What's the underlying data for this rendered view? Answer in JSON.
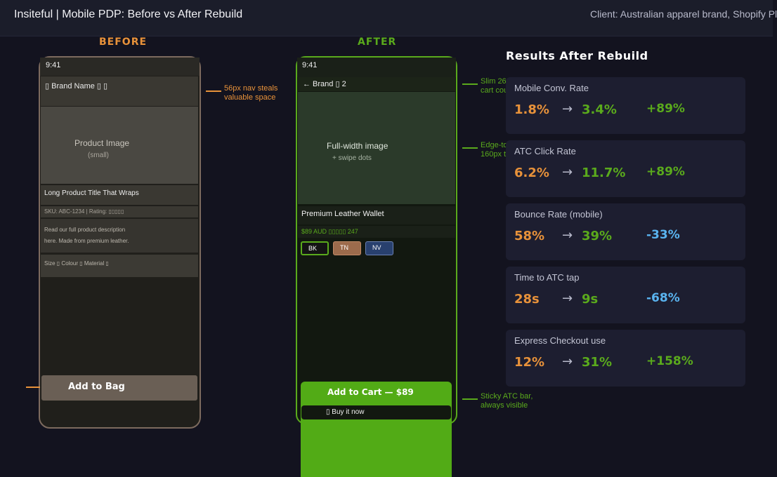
{
  "header": {
    "title": "Insiteful | Mobile PDP: Before vs After Rebuild",
    "client": "Client: Australian apparel brand, Shopify Pl"
  },
  "labels": {
    "before": "BEFORE",
    "after": "AFTER"
  },
  "before_phone": {
    "status_time": "9:41",
    "nav_text": "▯ Brand Name ▯ ▯",
    "image_text": "Product Image",
    "image_sub": "(small)",
    "title": "Long Product Title That Wraps",
    "sku": "SKU: ABC-1234  |  Rating: ▯▯▯▯▯",
    "description_line1": "Read our full product description",
    "description_line2": "here. Made from premium leather.",
    "variants": "Size ▯   Colour ▯   Material ▯",
    "atc": "Add to Bag"
  },
  "after_phone": {
    "status_time": "9:41",
    "nav_text": "← Brand  ▯ 2",
    "image_text": "Full-width image",
    "image_sub": "+ swipe dots",
    "title": "Premium Leather Wallet",
    "price_line": "$89 AUD  ▯▯▯▯▯ 247",
    "swatches": [
      "BK",
      "TN",
      "NV"
    ],
    "atc": "Add to Cart — $89",
    "buy_now": "▯ Buy it now"
  },
  "annotations": {
    "nav": [
      "56px nav steals",
      "valuable space"
    ],
    "slim_nav": [
      "Slim 26",
      "cart cou"
    ],
    "edge_image": [
      "Edge-to",
      "160px t"
    ],
    "sticky": [
      "Sticky ATC bar,",
      "always visible"
    ]
  },
  "results": {
    "title": "Results After Rebuild",
    "arrow": "→",
    "cards": [
      {
        "label": "Mobile Conv. Rate",
        "before": "1.8%",
        "after": "3.4%",
        "delta": "+89%",
        "delta_color": "#5aaa1c"
      },
      {
        "label": "ATC Click Rate",
        "before": "6.2%",
        "after": "11.7%",
        "delta": "+89%",
        "delta_color": "#5aaa1c"
      },
      {
        "label": "Bounce Rate (mobile)",
        "before": "58%",
        "after": "39%",
        "delta": "-33%",
        "delta_color": "#5ab4f0"
      },
      {
        "label": "Time to ATC tap",
        "before": "28s",
        "after": "9s",
        "delta": "-68%",
        "delta_color": "#5ab4f0"
      },
      {
        "label": "Express Checkout use",
        "before": "12%",
        "after": "31%",
        "delta": "+158%",
        "delta_color": "#5aaa1c"
      }
    ]
  }
}
